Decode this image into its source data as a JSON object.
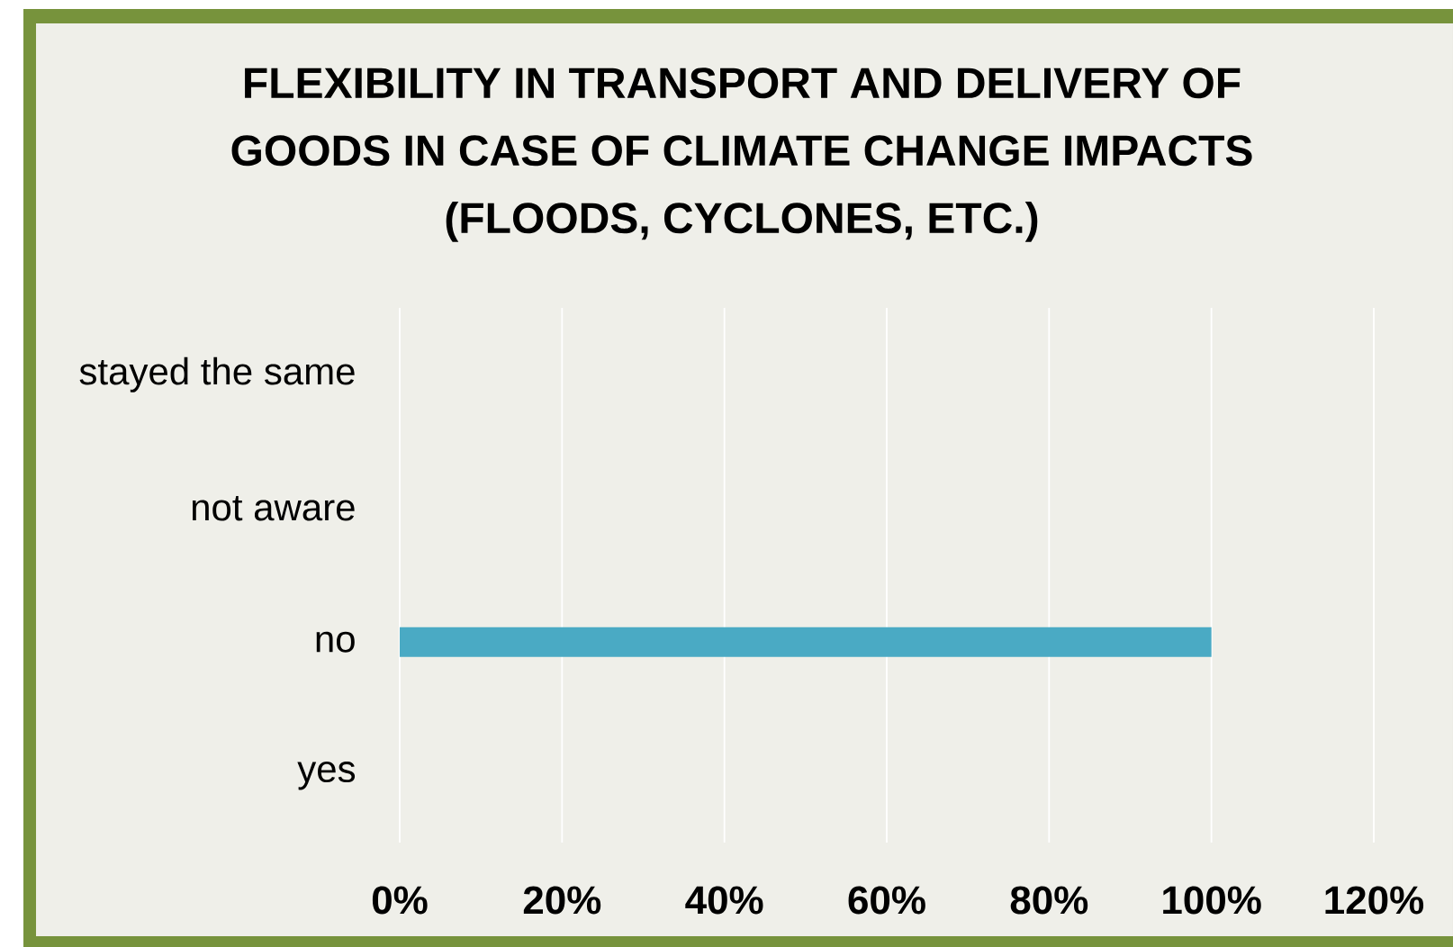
{
  "chart_data": {
    "type": "bar",
    "orientation": "horizontal",
    "title": "FLEXIBILITY IN TRANSPORT AND DELIVERY OF GOODS IN CASE OF CLIMATE CHANGE IMPACTS (FLOODS, CYCLONES, ETC.)",
    "categories": [
      "stayed the same",
      "not aware",
      "no",
      "yes"
    ],
    "values": [
      0,
      0,
      100,
      0
    ],
    "color": "#4aaac4",
    "xlim": [
      0,
      120
    ],
    "xticks": [
      {
        "value": 0,
        "label": "0%"
      },
      {
        "value": 20,
        "label": "20%"
      },
      {
        "value": 40,
        "label": "40%"
      },
      {
        "value": 60,
        "label": "60%"
      },
      {
        "value": 80,
        "label": "80%"
      },
      {
        "value": 100,
        "label": "100%"
      },
      {
        "value": 120,
        "label": "120%"
      }
    ],
    "grid": "x"
  }
}
